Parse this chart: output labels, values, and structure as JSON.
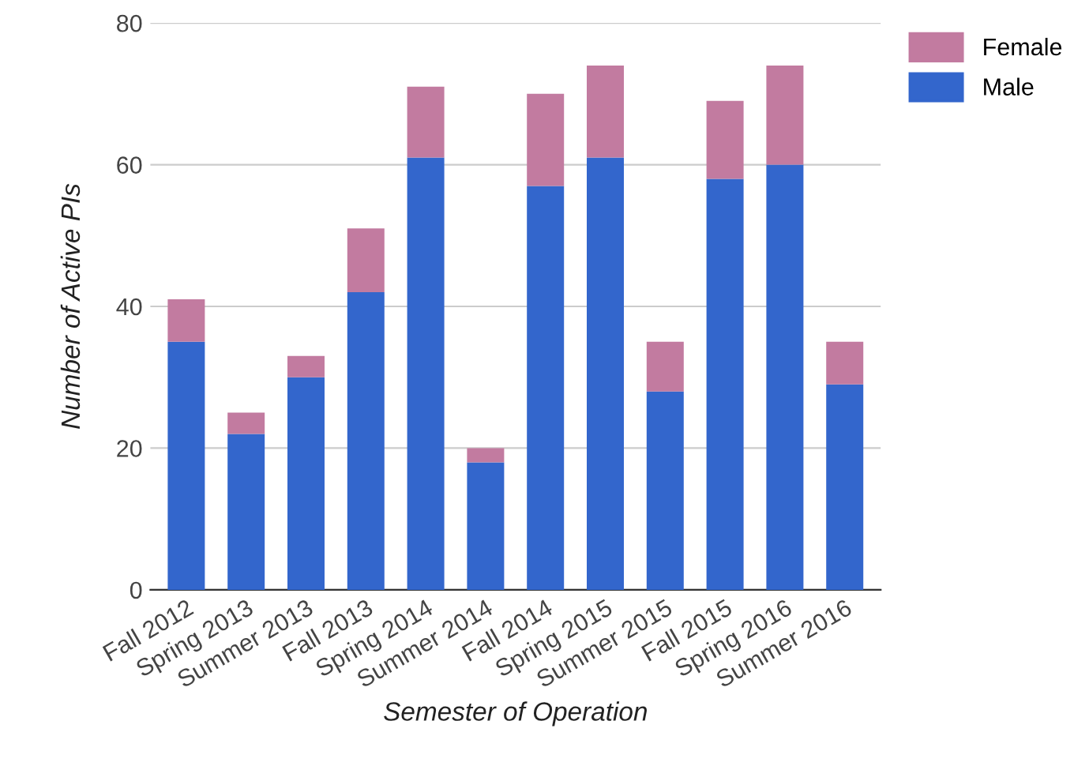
{
  "chart_data": {
    "type": "bar",
    "stacked": true,
    "xlabel": "Semester of Operation",
    "ylabel": "Number of Active PIs",
    "categories": [
      "Fall 2012",
      "Spring 2013",
      "Summer 2013",
      "Fall 2013",
      "Spring 2014",
      "Summer 2014",
      "Fall 2014",
      "Spring 2015",
      "Summer 2015",
      "Fall 2015",
      "Spring 2016",
      "Summer 2016"
    ],
    "series": [
      {
        "name": "Male",
        "color": "#3366cc",
        "values": [
          35,
          22,
          30,
          42,
          61,
          18,
          57,
          61,
          28,
          58,
          60,
          29
        ]
      },
      {
        "name": "Female",
        "color": "#c27ba0",
        "values": [
          6,
          3,
          3,
          9,
          10,
          2,
          13,
          13,
          7,
          11,
          14,
          6
        ]
      }
    ],
    "ylim": [
      0,
      80
    ],
    "yticks": [
      0,
      20,
      40,
      60,
      80
    ],
    "grid": "y",
    "legend": "top right"
  }
}
